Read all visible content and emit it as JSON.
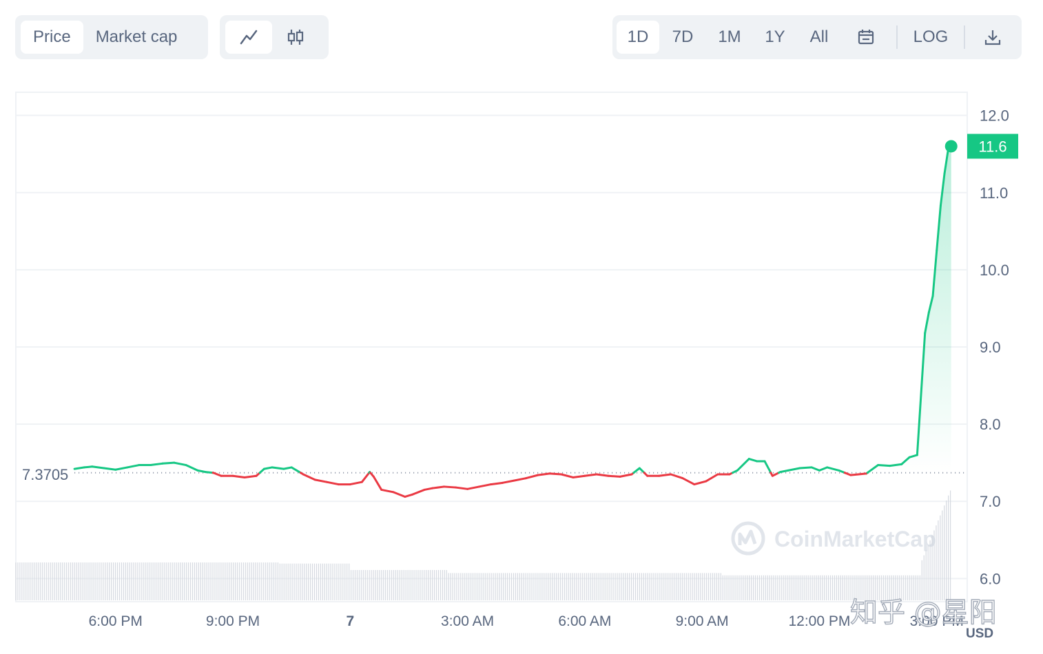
{
  "toolbar": {
    "metric_tabs": [
      "Price",
      "Market cap"
    ],
    "metric_active": "Price",
    "range_tabs": [
      "1D",
      "7D",
      "1M",
      "1Y",
      "All"
    ],
    "range_active": "1D",
    "log_label": "LOG",
    "icons": [
      "line-chart-icon",
      "candlestick-icon",
      "calendar-icon",
      "download-icon"
    ]
  },
  "watermark": {
    "brand": "CoinMarketCap",
    "overlay": "知乎 @星阳"
  },
  "colors": {
    "up": "#16c784",
    "down": "#ea3943",
    "axis_text": "#58667e",
    "grid": "#eff2f5",
    "toolbar_bg": "#eff2f5"
  },
  "chart_data": {
    "type": "line",
    "currency": "USD",
    "baseline": 7.3705,
    "baseline_label": "7.3705",
    "current_label": "11.6",
    "ylim": [
      5.7,
      12.3
    ],
    "y_ticks": [
      6.0,
      7.0,
      8.0,
      9.0,
      10.0,
      11.0,
      12.0
    ],
    "y_tick_labels": [
      "6.0",
      "7.0",
      "8.0",
      "9.0",
      "10.0",
      "11.0",
      "12.0"
    ],
    "x_ticks": [
      18,
      21,
      24,
      27,
      30,
      33,
      36,
      39
    ],
    "x_tick_labels": [
      "6:00 PM",
      "9:00 PM",
      "7",
      "3:00 AM",
      "6:00 AM",
      "9:00 AM",
      "12:00 PM",
      "3:00 PM"
    ],
    "xlim": [
      15.45,
      39.78
    ],
    "series": [
      {
        "x": [
          16.95,
          17.2,
          17.4,
          17.7,
          18.0,
          18.3,
          18.6,
          18.9,
          19.2,
          19.5,
          19.8,
          20.1,
          20.3,
          20.5,
          20.7,
          21.0,
          21.3,
          21.6,
          21.8,
          22.0,
          22.3,
          22.5,
          22.8,
          23.1,
          23.4,
          23.7,
          24.0,
          24.3,
          24.5,
          24.6,
          24.8,
          25.1,
          25.4,
          25.6,
          25.9,
          26.1,
          26.4,
          26.7,
          27.0,
          27.3,
          27.6,
          27.9,
          28.2,
          28.5,
          28.8,
          29.1,
          29.4,
          29.7,
          30.0,
          30.3,
          30.6,
          30.9,
          31.2,
          31.4,
          31.6,
          31.9,
          32.2,
          32.5,
          32.8,
          33.1,
          33.4,
          33.7,
          33.9,
          34.2,
          34.4,
          34.6,
          34.8,
          35.0,
          35.2,
          35.5,
          35.8,
          36.0,
          36.2,
          36.5,
          36.8,
          37.0,
          37.2,
          37.5,
          37.8,
          38.1,
          38.3,
          38.5,
          38.7,
          38.8,
          38.9,
          39.0,
          39.1,
          39.2,
          39.3,
          39.37
        ],
        "y": [
          7.42,
          7.44,
          7.45,
          7.43,
          7.41,
          7.44,
          7.47,
          7.47,
          7.49,
          7.5,
          7.47,
          7.4,
          7.38,
          7.37,
          7.33,
          7.33,
          7.31,
          7.33,
          7.42,
          7.44,
          7.42,
          7.44,
          7.35,
          7.28,
          7.25,
          7.22,
          7.22,
          7.25,
          7.38,
          7.32,
          7.15,
          7.12,
          7.06,
          7.09,
          7.15,
          7.17,
          7.19,
          7.18,
          7.16,
          7.19,
          7.22,
          7.24,
          7.27,
          7.3,
          7.34,
          7.36,
          7.35,
          7.31,
          7.33,
          7.35,
          7.33,
          7.32,
          7.35,
          7.43,
          7.33,
          7.33,
          7.35,
          7.3,
          7.22,
          7.26,
          7.35,
          7.35,
          7.4,
          7.55,
          7.52,
          7.52,
          7.33,
          7.38,
          7.4,
          7.43,
          7.44,
          7.4,
          7.44,
          7.4,
          7.34,
          7.35,
          7.36,
          7.47,
          7.46,
          7.48,
          7.57,
          7.6,
          9.18,
          9.45,
          9.66,
          10.25,
          10.83,
          11.25,
          11.58,
          11.6
        ]
      }
    ],
    "volume": {
      "x_start": 15.45,
      "x_end": 39.35,
      "levels": [
        {
          "from": 15.45,
          "to": 22.2,
          "value": 1.0
        },
        {
          "from": 22.2,
          "to": 24.0,
          "value": 0.97
        },
        {
          "from": 24.0,
          "to": 26.5,
          "value": 0.8
        },
        {
          "from": 26.5,
          "to": 33.5,
          "value": 0.72
        },
        {
          "from": 33.5,
          "to": 38.6,
          "value": 0.66
        },
        {
          "from": 38.6,
          "to": 39.35,
          "value": 1.9
        }
      ]
    }
  }
}
